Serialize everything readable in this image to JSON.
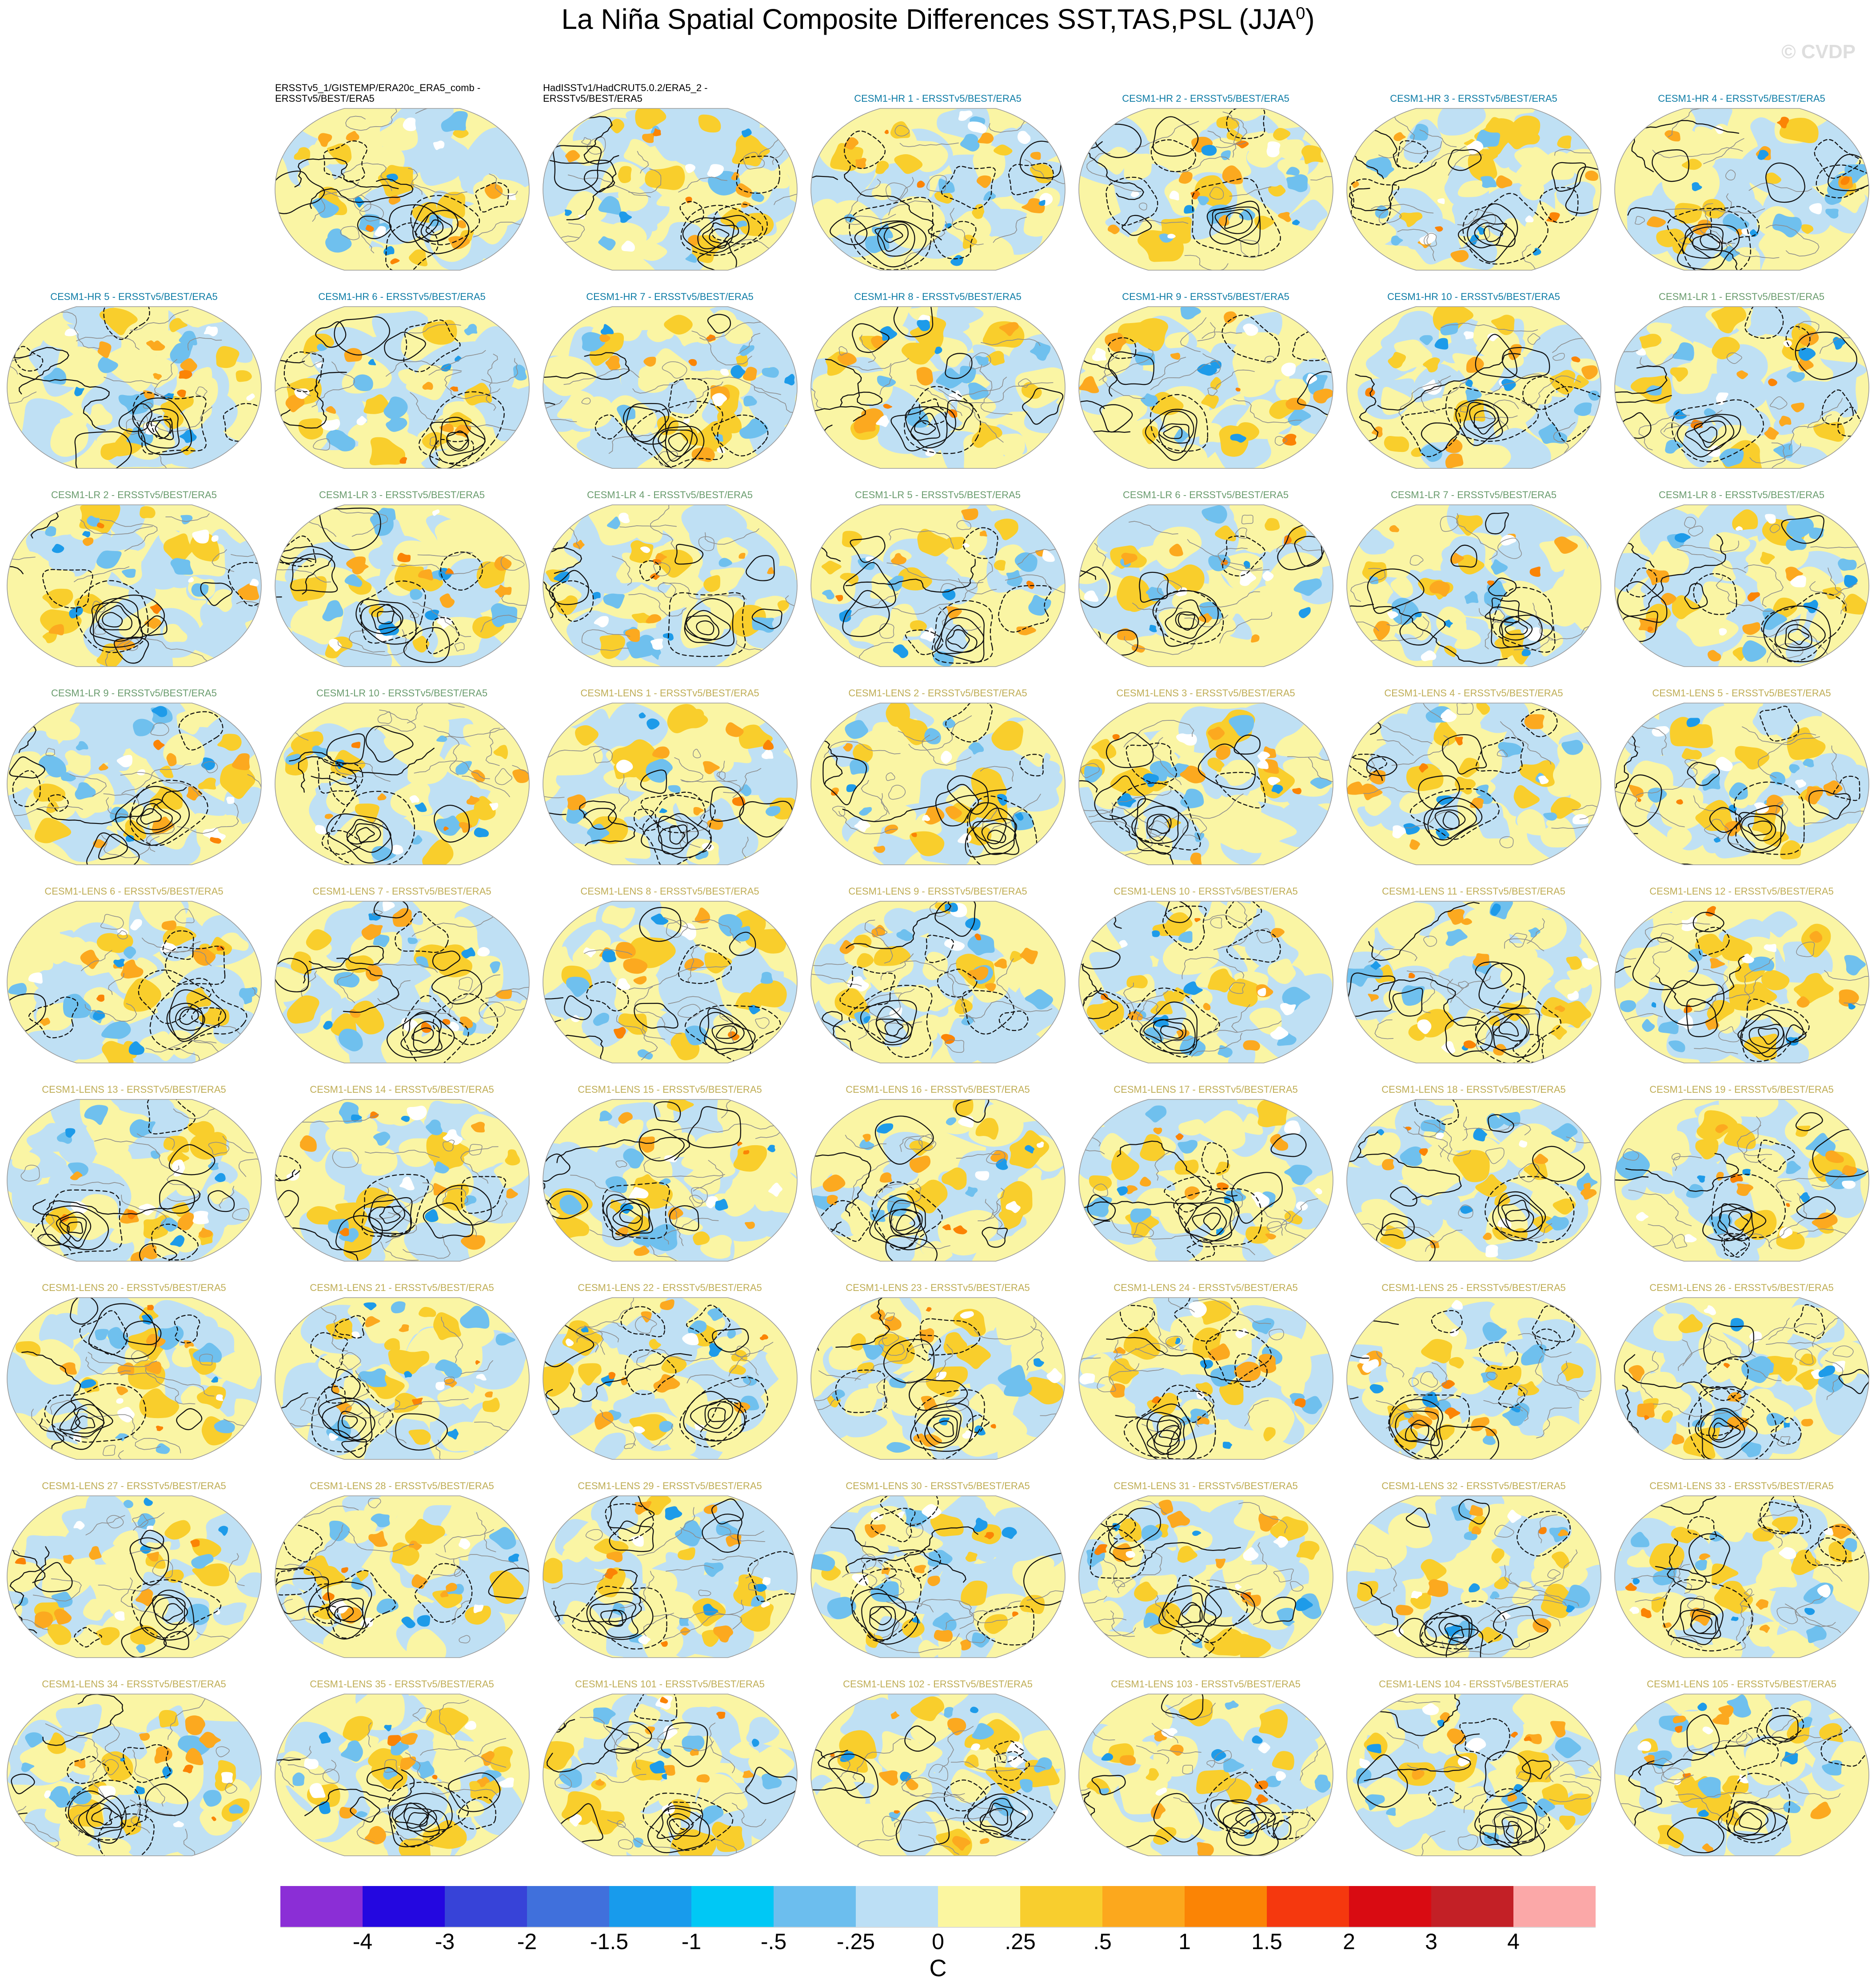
{
  "header": {
    "title_main": "La Niña Spatial Composite Differences SST,TAS,PSL (JJA",
    "title_sup": "0",
    "title_close": ")",
    "watermark": "© CVDP"
  },
  "chart_data": {
    "type": "heatmap",
    "title": "La Niña Spatial Composite Differences SST,TAS,PSL (JJA⁰)",
    "projection": "robinson world maps, 9x7 panel grid",
    "grid": {
      "rows": 9,
      "columns": 7
    },
    "panel_title_colors": {
      "obs": "#000000",
      "hr": "#0E7CA6",
      "lr": "#6A9C6E",
      "lens": "#BFAD55"
    },
    "map_palette": {
      "pale_yellow": "#FAF5A4",
      "light_blue": "#BFE0F4",
      "sky_blue": "#6FC0EE",
      "medium_blue": "#1E9BE9",
      "gold": "#F9CE2C",
      "orange": "#FCA91F",
      "deep_orange": "#FB8405",
      "white": "#FFFFFF",
      "coastline_gray": "#8C8C8C",
      "contour_black": "#111111"
    },
    "colorbar": {
      "unit": "C",
      "tick_labels": [
        "-4",
        "-3",
        "-2",
        "-1.5",
        "-1",
        "-.5",
        "-.25",
        "0",
        ".25",
        ".5",
        "1",
        "1.5",
        "2",
        "3",
        "4"
      ],
      "levels": [
        -4,
        -3,
        -2,
        -1.5,
        -1,
        -0.5,
        -0.25,
        0,
        0.25,
        0.5,
        1,
        1.5,
        2,
        3,
        4
      ],
      "colors": [
        "#8B2ED6",
        "#2407E0",
        "#3743D8",
        "#4070DC",
        "#189BEC",
        "#00C8F5",
        "#6CBEEE",
        "#BCDFF5",
        "#FBF6A0",
        "#F8CE2E",
        "#FCA81D",
        "#FB8405",
        "#F5380E",
        "#D90B12",
        "#C32026",
        "#FBA8A8"
      ],
      "position": "bottom"
    },
    "panels": [
      {
        "label": "ERSSTv5_1/GISTEMP/ERA20c_ERA5_comb -\nERSSTv5/BEST/ERA5",
        "group": "obs",
        "row": 1,
        "col": 2
      },
      {
        "label": "HadISSTv1/HadCRUT5.0.2/ERA5_2 -\nERSSTv5/BEST/ERA5",
        "group": "obs",
        "row": 1,
        "col": 3
      },
      {
        "label": "CESM1-HR 1 - ERSSTv5/BEST/ERA5",
        "group": "hr",
        "row": 1,
        "col": 4
      },
      {
        "label": "CESM1-HR 2 - ERSSTv5/BEST/ERA5",
        "group": "hr",
        "row": 1,
        "col": 5
      },
      {
        "label": "CESM1-HR 3 - ERSSTv5/BEST/ERA5",
        "group": "hr",
        "row": 1,
        "col": 6
      },
      {
        "label": "CESM1-HR 4 - ERSSTv5/BEST/ERA5",
        "group": "hr",
        "row": 1,
        "col": 7
      },
      {
        "label": "CESM1-HR 5 - ERSSTv5/BEST/ERA5",
        "group": "hr",
        "row": 2,
        "col": 1
      },
      {
        "label": "CESM1-HR 6 - ERSSTv5/BEST/ERA5",
        "group": "hr",
        "row": 2,
        "col": 2
      },
      {
        "label": "CESM1-HR 7 - ERSSTv5/BEST/ERA5",
        "group": "hr",
        "row": 2,
        "col": 3
      },
      {
        "label": "CESM1-HR 8 - ERSSTv5/BEST/ERA5",
        "group": "hr",
        "row": 2,
        "col": 4
      },
      {
        "label": "CESM1-HR 9 - ERSSTv5/BEST/ERA5",
        "group": "hr",
        "row": 2,
        "col": 5
      },
      {
        "label": "CESM1-HR 10 - ERSSTv5/BEST/ERA5",
        "group": "hr",
        "row": 2,
        "col": 6
      },
      {
        "label": "CESM1-LR 1 - ERSSTv5/BEST/ERA5",
        "group": "lr",
        "row": 2,
        "col": 7
      },
      {
        "label": "CESM1-LR 2 - ERSSTv5/BEST/ERA5",
        "group": "lr",
        "row": 3,
        "col": 1
      },
      {
        "label": "CESM1-LR 3 - ERSSTv5/BEST/ERA5",
        "group": "lr",
        "row": 3,
        "col": 2
      },
      {
        "label": "CESM1-LR 4 - ERSSTv5/BEST/ERA5",
        "group": "lr",
        "row": 3,
        "col": 3
      },
      {
        "label": "CESM1-LR 5 - ERSSTv5/BEST/ERA5",
        "group": "lr",
        "row": 3,
        "col": 4
      },
      {
        "label": "CESM1-LR 6 - ERSSTv5/BEST/ERA5",
        "group": "lr",
        "row": 3,
        "col": 5
      },
      {
        "label": "CESM1-LR 7 - ERSSTv5/BEST/ERA5",
        "group": "lr",
        "row": 3,
        "col": 6
      },
      {
        "label": "CESM1-LR 8 - ERSSTv5/BEST/ERA5",
        "group": "lr",
        "row": 3,
        "col": 7
      },
      {
        "label": "CESM1-LR 9 - ERSSTv5/BEST/ERA5",
        "group": "lr",
        "row": 4,
        "col": 1
      },
      {
        "label": "CESM1-LR 10 - ERSSTv5/BEST/ERA5",
        "group": "lr",
        "row": 4,
        "col": 2
      },
      {
        "label": "CESM1-LENS 1 - ERSSTv5/BEST/ERA5",
        "group": "lens",
        "row": 4,
        "col": 3
      },
      {
        "label": "CESM1-LENS 2 - ERSSTv5/BEST/ERA5",
        "group": "lens",
        "row": 4,
        "col": 4
      },
      {
        "label": "CESM1-LENS 3 - ERSSTv5/BEST/ERA5",
        "group": "lens",
        "row": 4,
        "col": 5
      },
      {
        "label": "CESM1-LENS 4 - ERSSTv5/BEST/ERA5",
        "group": "lens",
        "row": 4,
        "col": 6
      },
      {
        "label": "CESM1-LENS 5 - ERSSTv5/BEST/ERA5",
        "group": "lens",
        "row": 4,
        "col": 7
      },
      {
        "label": "CESM1-LENS 6 - ERSSTv5/BEST/ERA5",
        "group": "lens",
        "row": 5,
        "col": 1
      },
      {
        "label": "CESM1-LENS 7 - ERSSTv5/BEST/ERA5",
        "group": "lens",
        "row": 5,
        "col": 2
      },
      {
        "label": "CESM1-LENS 8 - ERSSTv5/BEST/ERA5",
        "group": "lens",
        "row": 5,
        "col": 3
      },
      {
        "label": "CESM1-LENS 9 - ERSSTv5/BEST/ERA5",
        "group": "lens",
        "row": 5,
        "col": 4
      },
      {
        "label": "CESM1-LENS 10 - ERSSTv5/BEST/ERA5",
        "group": "lens",
        "row": 5,
        "col": 5
      },
      {
        "label": "CESM1-LENS 11 - ERSSTv5/BEST/ERA5",
        "group": "lens",
        "row": 5,
        "col": 6
      },
      {
        "label": "CESM1-LENS 12 - ERSSTv5/BEST/ERA5",
        "group": "lens",
        "row": 5,
        "col": 7
      },
      {
        "label": "CESM1-LENS 13 - ERSSTv5/BEST/ERA5",
        "group": "lens",
        "row": 6,
        "col": 1
      },
      {
        "label": "CESM1-LENS 14 - ERSSTv5/BEST/ERA5",
        "group": "lens",
        "row": 6,
        "col": 2
      },
      {
        "label": "CESM1-LENS 15 - ERSSTv5/BEST/ERA5",
        "group": "lens",
        "row": 6,
        "col": 3
      },
      {
        "label": "CESM1-LENS 16 - ERSSTv5/BEST/ERA5",
        "group": "lens",
        "row": 6,
        "col": 4
      },
      {
        "label": "CESM1-LENS 17 - ERSSTv5/BEST/ERA5",
        "group": "lens",
        "row": 6,
        "col": 5
      },
      {
        "label": "CESM1-LENS 18 - ERSSTv5/BEST/ERA5",
        "group": "lens",
        "row": 6,
        "col": 6
      },
      {
        "label": "CESM1-LENS 19 - ERSSTv5/BEST/ERA5",
        "group": "lens",
        "row": 6,
        "col": 7
      },
      {
        "label": "CESM1-LENS 20 - ERSSTv5/BEST/ERA5",
        "group": "lens",
        "row": 7,
        "col": 1
      },
      {
        "label": "CESM1-LENS 21 - ERSSTv5/BEST/ERA5",
        "group": "lens",
        "row": 7,
        "col": 2
      },
      {
        "label": "CESM1-LENS 22 - ERSSTv5/BEST/ERA5",
        "group": "lens",
        "row": 7,
        "col": 3
      },
      {
        "label": "CESM1-LENS 23 - ERSSTv5/BEST/ERA5",
        "group": "lens",
        "row": 7,
        "col": 4
      },
      {
        "label": "CESM1-LENS 24 - ERSSTv5/BEST/ERA5",
        "group": "lens",
        "row": 7,
        "col": 5
      },
      {
        "label": "CESM1-LENS 25 - ERSSTv5/BEST/ERA5",
        "group": "lens",
        "row": 7,
        "col": 6
      },
      {
        "label": "CESM1-LENS 26 - ERSSTv5/BEST/ERA5",
        "group": "lens",
        "row": 7,
        "col": 7
      },
      {
        "label": "CESM1-LENS 27 - ERSSTv5/BEST/ERA5",
        "group": "lens",
        "row": 8,
        "col": 1
      },
      {
        "label": "CESM1-LENS 28 - ERSSTv5/BEST/ERA5",
        "group": "lens",
        "row": 8,
        "col": 2
      },
      {
        "label": "CESM1-LENS 29 - ERSSTv5/BEST/ERA5",
        "group": "lens",
        "row": 8,
        "col": 3
      },
      {
        "label": "CESM1-LENS 30 - ERSSTv5/BEST/ERA5",
        "group": "lens",
        "row": 8,
        "col": 4
      },
      {
        "label": "CESM1-LENS 31 - ERSSTv5/BEST/ERA5",
        "group": "lens",
        "row": 8,
        "col": 5
      },
      {
        "label": "CESM1-LENS 32 - ERSSTv5/BEST/ERA5",
        "group": "lens",
        "row": 8,
        "col": 6
      },
      {
        "label": "CESM1-LENS 33 - ERSSTv5/BEST/ERA5",
        "group": "lens",
        "row": 8,
        "col": 7
      },
      {
        "label": "CESM1-LENS 34 - ERSSTv5/BEST/ERA5",
        "group": "lens",
        "row": 9,
        "col": 1
      },
      {
        "label": "CESM1-LENS 35 - ERSSTv5/BEST/ERA5",
        "group": "lens",
        "row": 9,
        "col": 2
      },
      {
        "label": "CESM1-LENS 101 - ERSSTv5/BEST/ERA5",
        "group": "lens",
        "row": 9,
        "col": 3
      },
      {
        "label": "CESM1-LENS 102 - ERSSTv5/BEST/ERA5",
        "group": "lens",
        "row": 9,
        "col": 4
      },
      {
        "label": "CESM1-LENS 103 - ERSSTv5/BEST/ERA5",
        "group": "lens",
        "row": 9,
        "col": 5
      },
      {
        "label": "CESM1-LENS 104 - ERSSTv5/BEST/ERA5",
        "group": "lens",
        "row": 9,
        "col": 6
      },
      {
        "label": "CESM1-LENS 105 - ERSSTv5/BEST/ERA5",
        "group": "lens",
        "row": 9,
        "col": 7
      }
    ]
  }
}
